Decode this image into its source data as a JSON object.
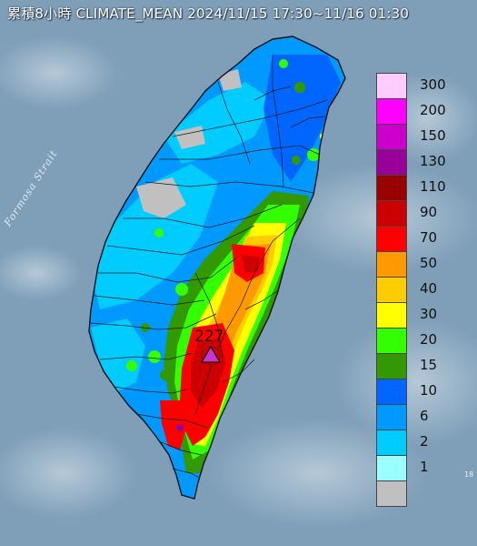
{
  "title": "累積8小時 CLIMATE_MEAN 2024/11/15 17:30~11/16 01:30",
  "strait_label": "Formosa Strait",
  "max_value": "227",
  "edge_mark": "18",
  "legend": {
    "items": [
      {
        "label": "300",
        "color": "#ffccff"
      },
      {
        "label": "200",
        "color": "#ff00ff"
      },
      {
        "label": "150",
        "color": "#cc00cc"
      },
      {
        "label": "130",
        "color": "#990099"
      },
      {
        "label": "110",
        "color": "#990000"
      },
      {
        "label": "90",
        "color": "#cc0000"
      },
      {
        "label": "70",
        "color": "#ff0000"
      },
      {
        "label": "50",
        "color": "#ff9900"
      },
      {
        "label": "40",
        "color": "#ffcc00"
      },
      {
        "label": "30",
        "color": "#ffff00"
      },
      {
        "label": "20",
        "color": "#33ff00"
      },
      {
        "label": "15",
        "color": "#339900"
      },
      {
        "label": "10",
        "color": "#0066ff"
      },
      {
        "label": "6",
        "color": "#0099ff"
      },
      {
        "label": "2",
        "color": "#00ccff"
      },
      {
        "label": "1",
        "color": "#99ffff"
      },
      {
        "label": "",
        "color": "#c0c0c0"
      }
    ]
  },
  "colors": {
    "ocean": "#7f9fb8",
    "max_marker": "#cc33cc"
  }
}
